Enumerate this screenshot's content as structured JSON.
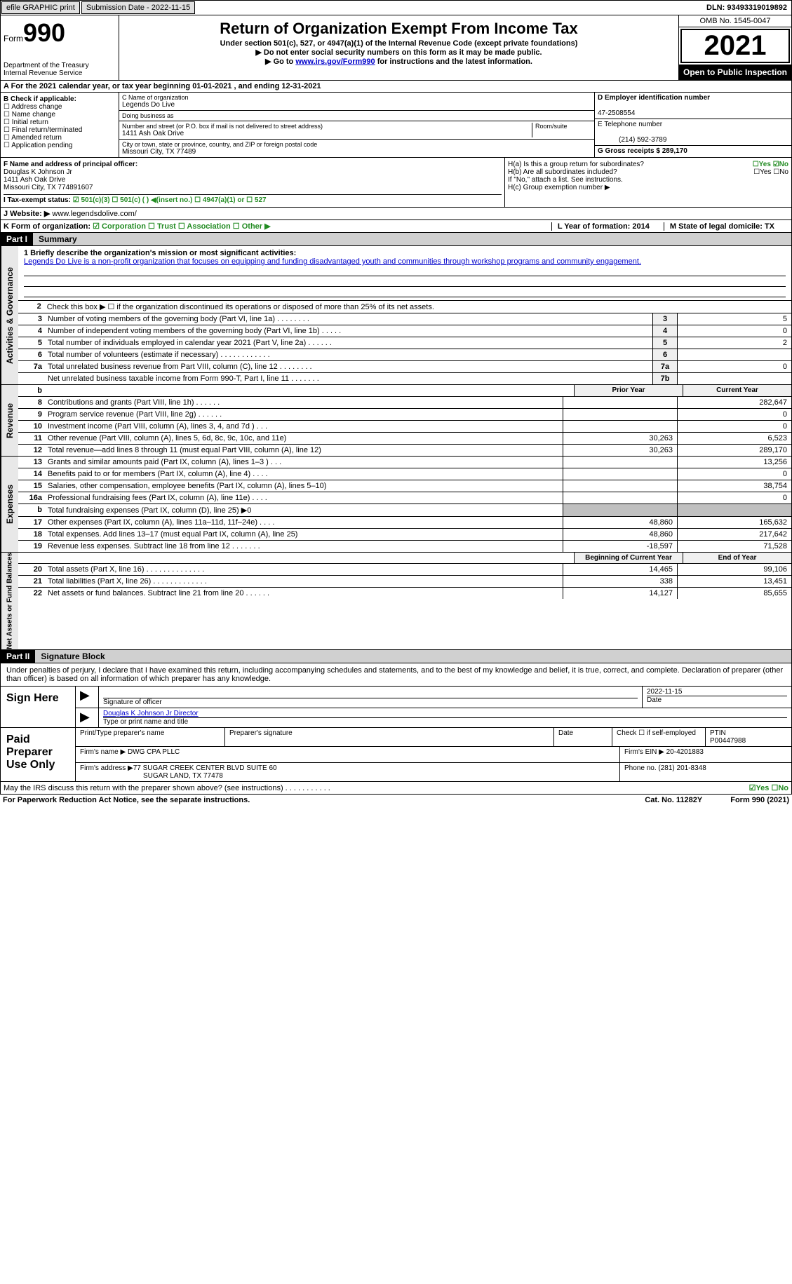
{
  "topbar": {
    "efile": "efile GRAPHIC print",
    "subdate_label": "Submission Date - 2022-11-15",
    "dln_label": "DLN: 93493319019892"
  },
  "header": {
    "form_label": "Form",
    "form_number": "990",
    "dept": "Department of the Treasury",
    "irs": "Internal Revenue Service",
    "title": "Return of Organization Exempt From Income Tax",
    "subtitle": "Under section 501(c), 527, or 4947(a)(1) of the Internal Revenue Code (except private foundations)",
    "note1": "▶ Do not enter social security numbers on this form as it may be made public.",
    "note2_pre": "▶ Go to ",
    "note2_link": "www.irs.gov/Form990",
    "note2_post": " for instructions and the latest information.",
    "omb": "OMB No. 1545-0047",
    "year": "2021",
    "inspection": "Open to Public Inspection"
  },
  "row_a": {
    "text": "A For the 2021 calendar year, or tax year beginning 01-01-2021    , and ending 12-31-2021"
  },
  "col_b": {
    "label": "B Check if applicable:",
    "items": [
      "Address change",
      "Name change",
      "Initial return",
      "Final return/terminated",
      "Amended return",
      "Application pending"
    ]
  },
  "col_c": {
    "name_label": "C Name of organization",
    "name": "Legends Do Live",
    "dba_label": "Doing business as",
    "dba": "",
    "addr_label": "Number and street (or P.O. box if mail is not delivered to street address)",
    "room_label": "Room/suite",
    "addr": "1411 Ash Oak Drive",
    "city_label": "City or town, state or province, country, and ZIP or foreign postal code",
    "city": "Missouri City, TX  77489"
  },
  "col_d": {
    "ein_label": "D Employer identification number",
    "ein": "47-2508554",
    "phone_label": "E Telephone number",
    "phone": "(214) 592-3789",
    "gross_label": "G Gross receipts $ 289,170"
  },
  "row_f": {
    "f_label": "F  Name and address of principal officer:",
    "f_name": "Douglas K Johnson Jr",
    "f_addr1": "1411 Ash Oak Drive",
    "f_addr2": "Missouri City, TX  774891607",
    "ha": "H(a)  Is this a group return for subordinates?",
    "ha_ans": "☐Yes ☑No",
    "hb": "H(b)  Are all subordinates included?",
    "hb_ans": "☐Yes ☐No",
    "hb_note": "If \"No,\" attach a list. See instructions.",
    "hc": "H(c)  Group exemption number ▶"
  },
  "row_i": {
    "label": "I  Tax-exempt status:",
    "opts": "☑ 501(c)(3)    ☐ 501(c) (  ) ◀(insert no.)    ☐ 4947(a)(1) or   ☐ 527"
  },
  "row_j": {
    "label": "J  Website: ▶",
    "value": "www.legendsdolive.com/"
  },
  "row_k": {
    "label": "K Form of organization:",
    "opts": "☑ Corporation  ☐ Trust  ☐ Association  ☐ Other ▶",
    "l_label": "L Year of formation: 2014",
    "m_label": "M State of legal domicile: TX"
  },
  "parts": {
    "part1": "Part I",
    "part1_title": "Summary",
    "part2": "Part II",
    "part2_title": "Signature Block"
  },
  "side_labels": {
    "activities": "Activities & Governance",
    "revenue": "Revenue",
    "expenses": "Expenses",
    "netassets": "Net Assets or Fund Balances"
  },
  "mission": {
    "label": "1  Briefly describe the organization's mission or most significant activities:",
    "text": "Legends Do Live is a non-profit organization that focuses on equipping and funding disadvantaged youth and communities through workshop programs and community engagement."
  },
  "lines_ag": [
    {
      "num": "2",
      "desc": "Check this box ▶ ☐ if the organization discontinued its operations or disposed of more than 25% of its net assets."
    },
    {
      "num": "3",
      "desc": "Number of voting members of the governing body (Part VI, line 1a)   .    .    .    .    .    .    .    .",
      "box": "3",
      "val": "5"
    },
    {
      "num": "4",
      "desc": "Number of independent voting members of the governing body (Part VI, line 1b)   .    .    .    .    .",
      "box": "4",
      "val": "0"
    },
    {
      "num": "5",
      "desc": "Total number of individuals employed in calendar year 2021 (Part V, line 2a)   .    .    .    .    .    .",
      "box": "5",
      "val": "2"
    },
    {
      "num": "6",
      "desc": "Total number of volunteers (estimate if necessary)    .    .    .    .    .    .    .    .    .    .    .    .",
      "box": "6",
      "val": ""
    },
    {
      "num": "7a",
      "desc": "Total unrelated business revenue from Part VIII, column (C), line 12    .    .    .    .    .    .    .    .",
      "box": "7a",
      "val": "0"
    },
    {
      "num": "",
      "desc": "Net unrelated business taxable income from Form 990-T, Part I, line 11   .    .    .    .    .    .    .",
      "box": "7b",
      "val": ""
    }
  ],
  "col_headers": {
    "b": "b",
    "prior": "Prior Year",
    "current": "Current Year"
  },
  "lines_rev": [
    {
      "num": "8",
      "desc": "Contributions and grants (Part VIII, line 1h)   .    .    .    .    .    .",
      "prior": "",
      "current": "282,647"
    },
    {
      "num": "9",
      "desc": "Program service revenue (Part VIII, line 2g)   .    .    .    .    .    .",
      "prior": "",
      "current": "0"
    },
    {
      "num": "10",
      "desc": "Investment income (Part VIII, column (A), lines 3, 4, and 7d )   .    .    .",
      "prior": "",
      "current": "0"
    },
    {
      "num": "11",
      "desc": "Other revenue (Part VIII, column (A), lines 5, 6d, 8c, 9c, 10c, and 11e)",
      "prior": "30,263",
      "current": "6,523"
    },
    {
      "num": "12",
      "desc": "Total revenue—add lines 8 through 11 (must equal Part VIII, column (A), line 12)",
      "prior": "30,263",
      "current": "289,170"
    }
  ],
  "lines_exp": [
    {
      "num": "13",
      "desc": "Grants and similar amounts paid (Part IX, column (A), lines 1–3 )   .    .    .",
      "prior": "",
      "current": "13,256"
    },
    {
      "num": "14",
      "desc": "Benefits paid to or for members (Part IX, column (A), line 4)   .    .    .    .",
      "prior": "",
      "current": "0"
    },
    {
      "num": "15",
      "desc": "Salaries, other compensation, employee benefits (Part IX, column (A), lines 5–10)",
      "prior": "",
      "current": "38,754"
    },
    {
      "num": "16a",
      "desc": "Professional fundraising fees (Part IX, column (A), line 11e)   .    .    .    .",
      "prior": "",
      "current": "0"
    },
    {
      "num": "b",
      "desc": "Total fundraising expenses (Part IX, column (D), line 25) ▶0",
      "prior": "shaded",
      "current": "shaded"
    },
    {
      "num": "17",
      "desc": "Other expenses (Part IX, column (A), lines 11a–11d, 11f–24e)   .    .    .    .",
      "prior": "48,860",
      "current": "165,632"
    },
    {
      "num": "18",
      "desc": "Total expenses. Add lines 13–17 (must equal Part IX, column (A), line 25)",
      "prior": "48,860",
      "current": "217,642"
    },
    {
      "num": "19",
      "desc": "Revenue less expenses. Subtract line 18 from line 12   .    .    .    .    .    .    .",
      "prior": "-18,597",
      "current": "71,528"
    }
  ],
  "col_headers2": {
    "begin": "Beginning of Current Year",
    "end": "End of Year"
  },
  "lines_net": [
    {
      "num": "20",
      "desc": "Total assets (Part X, line 16)   .    .    .    .    .    .    .    .    .    .    .    .    .    .",
      "prior": "14,465",
      "current": "99,106"
    },
    {
      "num": "21",
      "desc": "Total liabilities (Part X, line 26)   .    .    .    .    .    .    .    .    .    .    .    .    .",
      "prior": "338",
      "current": "13,451"
    },
    {
      "num": "22",
      "desc": "Net assets or fund balances. Subtract line 21 from line 20   .    .    .    .    .    .",
      "prior": "14,127",
      "current": "85,655"
    }
  ],
  "sig": {
    "declaration": "Under penalties of perjury, I declare that I have examined this return, including accompanying schedules and statements, and to the best of my knowledge and belief, it is true, correct, and complete. Declaration of preparer (other than officer) is based on all information of which preparer has any knowledge.",
    "sign_here": "Sign Here",
    "sig_officer_label": "Signature of officer",
    "date_label": "Date",
    "sig_date": "2022-11-15",
    "officer_name": "Douglas K Johnson Jr  Director",
    "type_label": "Type or print name and title",
    "paid_prep": "Paid Preparer Use Only",
    "prep_name_label": "Print/Type preparer's name",
    "prep_sig_label": "Preparer's signature",
    "prep_date_label": "Date",
    "check_if": "Check ☐ if self-employed",
    "ptin_label": "PTIN",
    "ptin": "P00447988",
    "firm_name_label": "Firm's name    ▶",
    "firm_name": "DWG CPA PLLC",
    "firm_ein_label": "Firm's EIN ▶",
    "firm_ein": "20-4201883",
    "firm_addr_label": "Firm's address ▶",
    "firm_addr1": "77 SUGAR CREEK CENTER BLVD SUITE 60",
    "firm_addr2": "SUGAR LAND, TX  77478",
    "phone_label": "Phone no.",
    "phone": "(281) 201-8348",
    "discuss": "May the IRS discuss this return with the preparer shown above? (see instructions)    .    .    .    .    .    .    .    .    .    .    .",
    "discuss_ans": "☑Yes  ☐No"
  },
  "footer": {
    "paperwork": "For Paperwork Reduction Act Notice, see the separate instructions.",
    "cat": "Cat. No. 11282Y",
    "form": "Form 990 (2021)"
  }
}
